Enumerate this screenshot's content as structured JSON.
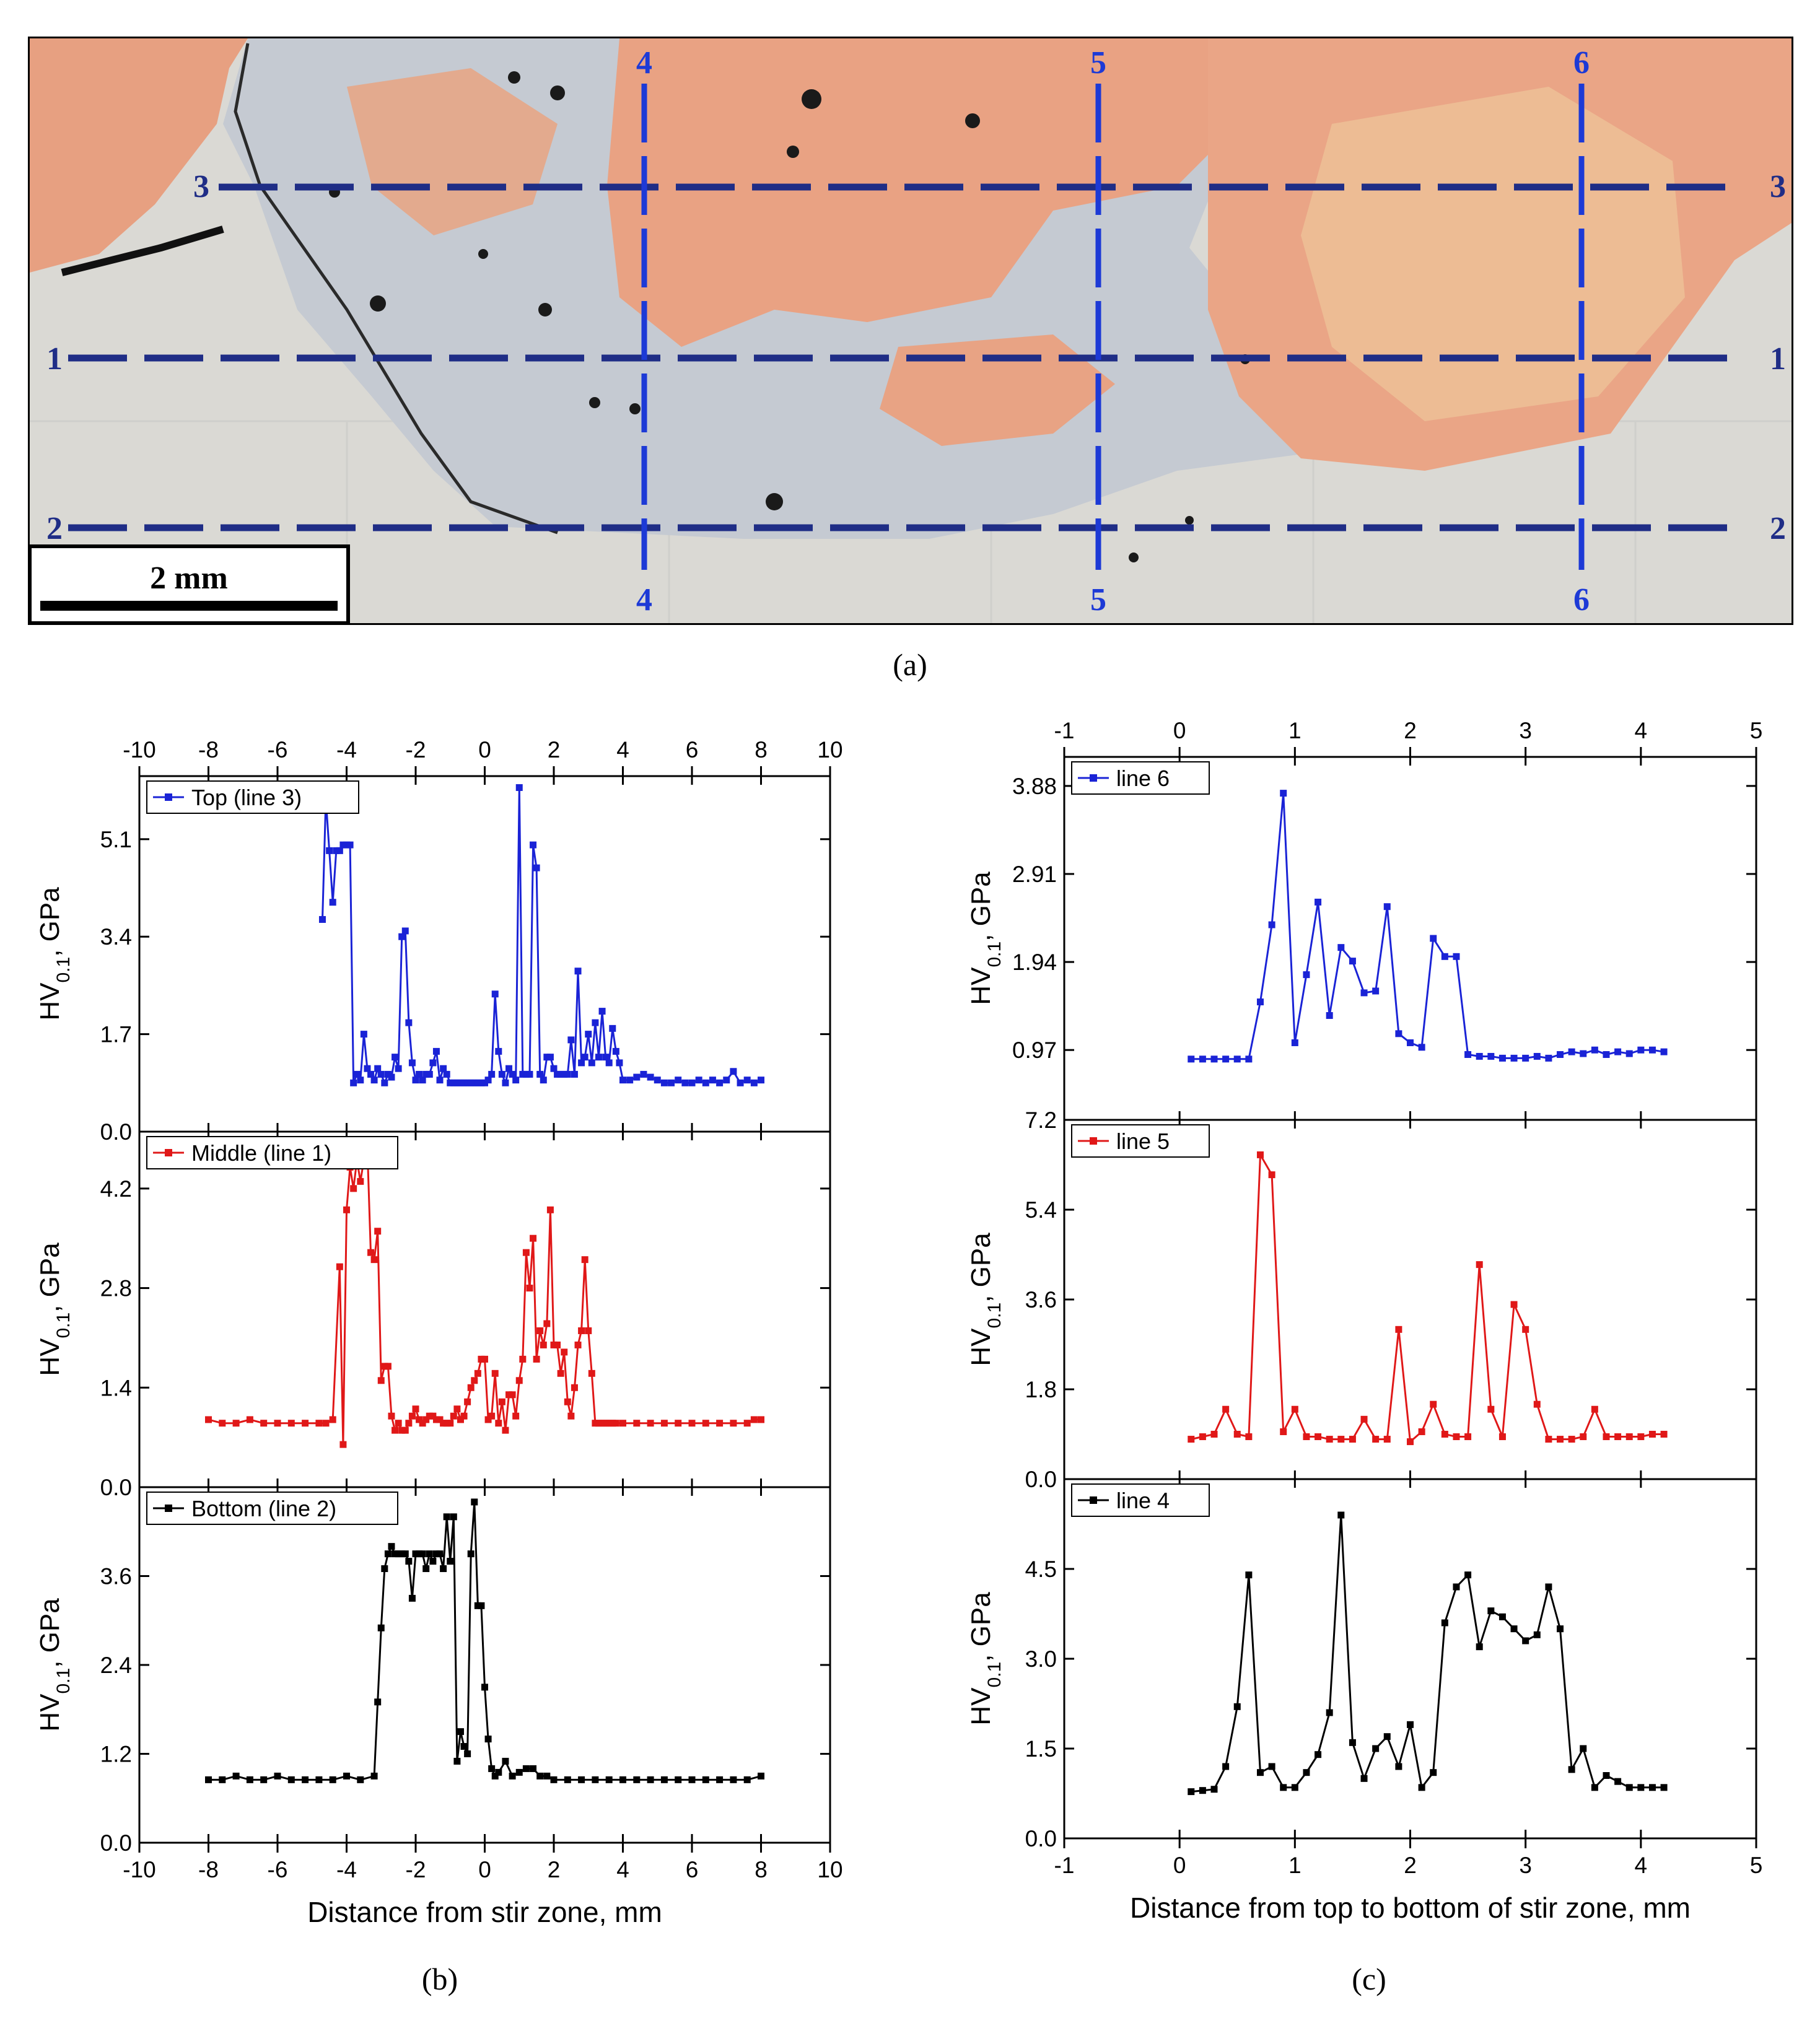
{
  "panel_a": {
    "caption": "(a)",
    "scale_bar_label": "2 mm",
    "line_labels": {
      "h1": "1",
      "h2": "2",
      "h3": "3",
      "v4": "4",
      "v5": "5",
      "v6": "6"
    },
    "colors": {
      "copper": "#e8a384",
      "steel": "#c8ccd2",
      "base": "#dcdcd8",
      "line": "#1f2d86",
      "vline": "#1d3ad6"
    }
  },
  "panel_b": {
    "caption": "(b)"
  },
  "panel_c": {
    "caption": "(c)"
  },
  "chart_data": [
    {
      "type": "line",
      "panel": "b",
      "title": "",
      "legend": "Top (line 3)",
      "color": "#1a23d6",
      "xlabel": "Distance from stir zone, mm",
      "ylabel": "HV0.1, GPa",
      "xlim": [
        -10,
        10
      ],
      "xticks": [
        -10,
        -8,
        -6,
        -4,
        -2,
        0,
        2,
        4,
        6,
        8,
        10
      ],
      "ylim": [
        0,
        6.2
      ],
      "yticks": [
        0.0,
        1.7,
        3.4,
        5.1
      ],
      "x": [
        -4.7,
        -4.6,
        -4.5,
        -4.4,
        -4.3,
        -4.2,
        -4.1,
        -4.0,
        -3.9,
        -3.8,
        -3.7,
        -3.6,
        -3.5,
        -3.4,
        -3.3,
        -3.2,
        -3.1,
        -3.0,
        -2.9,
        -2.8,
        -2.7,
        -2.6,
        -2.5,
        -2.4,
        -2.3,
        -2.2,
        -2.1,
        -2.0,
        -1.9,
        -1.8,
        -1.7,
        -1.6,
        -1.5,
        -1.4,
        -1.3,
        -1.2,
        -1.1,
        -1.0,
        -0.9,
        -0.8,
        -0.7,
        -0.6,
        -0.5,
        -0.4,
        -0.3,
        -0.2,
        -0.1,
        0.0,
        0.1,
        0.2,
        0.3,
        0.4,
        0.5,
        0.6,
        0.7,
        0.8,
        0.9,
        1.0,
        1.1,
        1.2,
        1.3,
        1.4,
        1.5,
        1.6,
        1.7,
        1.8,
        1.9,
        2.0,
        2.1,
        2.2,
        2.3,
        2.4,
        2.5,
        2.6,
        2.7,
        2.8,
        2.9,
        3.0,
        3.1,
        3.2,
        3.3,
        3.4,
        3.5,
        3.6,
        3.7,
        3.8,
        3.9,
        4.0,
        4.2,
        4.4,
        4.6,
        4.8,
        5.0,
        5.2,
        5.4,
        5.6,
        5.8,
        6.0,
        6.2,
        6.4,
        6.6,
        6.8,
        7.0,
        7.2,
        7.4,
        7.6,
        7.8,
        8.0
      ],
      "values": [
        3.7,
        5.8,
        4.9,
        4.0,
        4.9,
        4.9,
        5.0,
        5.0,
        5.0,
        0.85,
        1.0,
        0.9,
        1.7,
        1.1,
        1.0,
        0.9,
        1.1,
        1.0,
        0.85,
        1.0,
        0.95,
        1.3,
        1.1,
        3.4,
        3.5,
        1.9,
        1.2,
        0.9,
        1.0,
        0.9,
        1.0,
        1.0,
        1.2,
        1.4,
        0.9,
        1.1,
        1.0,
        0.85,
        0.85,
        0.85,
        0.85,
        0.85,
        0.85,
        0.85,
        0.85,
        0.85,
        0.85,
        0.85,
        0.9,
        1.0,
        2.4,
        1.4,
        1.0,
        0.85,
        1.1,
        1.0,
        0.9,
        6.0,
        1.0,
        1.0,
        1.0,
        5.0,
        4.6,
        1.0,
        0.9,
        1.3,
        1.3,
        1.1,
        1.0,
        1.0,
        1.0,
        1.0,
        1.6,
        1.0,
        2.8,
        1.2,
        1.3,
        1.7,
        1.2,
        1.9,
        1.3,
        2.1,
        1.3,
        1.2,
        1.8,
        1.4,
        1.2,
        0.9,
        0.9,
        0.95,
        1.0,
        0.95,
        0.9,
        0.85,
        0.85,
        0.9,
        0.85,
        0.85,
        0.9,
        0.85,
        0.9,
        0.85,
        0.9,
        1.05,
        0.85,
        0.9,
        0.85,
        0.9
      ]
    },
    {
      "type": "line",
      "panel": "b",
      "legend": "Middle (line 1)",
      "color": "#e01818",
      "xlabel": "Distance from stir zone, mm",
      "ylabel": "HV0.1, GPa",
      "xlim": [
        -10,
        10
      ],
      "ylim": [
        0,
        5.0
      ],
      "yticks": [
        0.0,
        1.4,
        2.8,
        4.2
      ],
      "x": [
        -8.0,
        -7.6,
        -7.2,
        -6.8,
        -6.4,
        -6.0,
        -5.6,
        -5.2,
        -4.8,
        -4.6,
        -4.4,
        -4.2,
        -4.1,
        -4.0,
        -3.9,
        -3.8,
        -3.7,
        -3.6,
        -3.5,
        -3.4,
        -3.3,
        -3.2,
        -3.1,
        -3.0,
        -2.9,
        -2.8,
        -2.7,
        -2.6,
        -2.5,
        -2.4,
        -2.3,
        -2.2,
        -2.1,
        -2.0,
        -1.9,
        -1.8,
        -1.7,
        -1.6,
        -1.5,
        -1.4,
        -1.3,
        -1.2,
        -1.1,
        -1.0,
        -0.9,
        -0.8,
        -0.7,
        -0.6,
        -0.5,
        -0.4,
        -0.3,
        -0.2,
        -0.1,
        0.0,
        0.1,
        0.2,
        0.3,
        0.4,
        0.5,
        0.6,
        0.7,
        0.8,
        0.9,
        1.0,
        1.1,
        1.2,
        1.3,
        1.4,
        1.5,
        1.6,
        1.7,
        1.8,
        1.9,
        2.0,
        2.1,
        2.2,
        2.3,
        2.4,
        2.5,
        2.6,
        2.7,
        2.8,
        2.9,
        3.0,
        3.1,
        3.2,
        3.3,
        3.4,
        3.5,
        3.6,
        3.7,
        3.8,
        4.0,
        4.4,
        4.8,
        5.2,
        5.6,
        6.0,
        6.4,
        6.8,
        7.2,
        7.6,
        7.8,
        8.0
      ],
      "values": [
        0.95,
        0.9,
        0.9,
        0.95,
        0.9,
        0.9,
        0.9,
        0.9,
        0.9,
        0.9,
        0.95,
        3.1,
        0.6,
        3.9,
        4.5,
        4.2,
        4.6,
        4.3,
        4.6,
        4.8,
        3.3,
        3.2,
        3.6,
        1.5,
        1.7,
        1.7,
        1.0,
        0.8,
        0.9,
        0.8,
        0.8,
        0.9,
        1.0,
        1.1,
        0.95,
        0.9,
        0.95,
        1.0,
        1.0,
        0.95,
        0.95,
        0.9,
        0.9,
        0.9,
        1.0,
        1.1,
        0.95,
        1.0,
        1.2,
        1.4,
        1.5,
        1.6,
        1.8,
        1.8,
        0.95,
        1.0,
        1.6,
        0.9,
        1.2,
        0.8,
        1.3,
        1.3,
        1.0,
        1.5,
        1.8,
        3.3,
        2.8,
        3.5,
        1.8,
        2.2,
        2.0,
        2.3,
        3.9,
        2.0,
        2.0,
        1.6,
        1.9,
        1.2,
        1.0,
        1.4,
        2.0,
        2.2,
        3.2,
        2.2,
        1.6,
        0.9,
        0.9,
        0.9,
        0.9,
        0.9,
        0.9,
        0.9,
        0.9,
        0.9,
        0.9,
        0.9,
        0.9,
        0.9,
        0.9,
        0.9,
        0.9,
        0.9,
        0.95,
        0.95
      ]
    },
    {
      "type": "line",
      "panel": "b",
      "legend": "Bottom (line 2)",
      "color": "#000000",
      "xlabel": "Distance from stir zone, mm",
      "ylabel": "HV0.1, GPa",
      "xlim": [
        -10,
        10
      ],
      "ylim": [
        0,
        4.8
      ],
      "yticks": [
        0.0,
        1.2,
        2.4,
        3.6
      ],
      "x": [
        -8.0,
        -7.6,
        -7.2,
        -6.8,
        -6.4,
        -6.0,
        -5.6,
        -5.2,
        -4.8,
        -4.4,
        -4.0,
        -3.6,
        -3.2,
        -3.1,
        -3.0,
        -2.9,
        -2.8,
        -2.7,
        -2.6,
        -2.5,
        -2.4,
        -2.3,
        -2.2,
        -2.1,
        -2.0,
        -1.9,
        -1.8,
        -1.7,
        -1.6,
        -1.5,
        -1.4,
        -1.3,
        -1.2,
        -1.1,
        -1.0,
        -0.9,
        -0.8,
        -0.7,
        -0.6,
        -0.5,
        -0.4,
        -0.3,
        -0.2,
        -0.1,
        0.0,
        0.1,
        0.2,
        0.3,
        0.4,
        0.6,
        0.8,
        1.0,
        1.2,
        1.4,
        1.6,
        1.8,
        2.0,
        2.4,
        2.8,
        3.2,
        3.6,
        4.0,
        4.4,
        4.8,
        5.2,
        5.6,
        6.0,
        6.4,
        6.8,
        7.2,
        7.6,
        8.0
      ],
      "values": [
        0.85,
        0.85,
        0.9,
        0.85,
        0.85,
        0.9,
        0.85,
        0.85,
        0.85,
        0.85,
        0.9,
        0.85,
        0.9,
        1.9,
        2.9,
        3.7,
        3.9,
        4.0,
        3.9,
        3.9,
        3.9,
        3.9,
        3.8,
        3.3,
        3.9,
        3.9,
        3.9,
        3.7,
        3.9,
        3.8,
        3.9,
        3.9,
        3.7,
        4.4,
        3.8,
        4.4,
        1.1,
        1.5,
        1.3,
        1.2,
        3.9,
        4.6,
        3.2,
        3.2,
        2.1,
        1.4,
        1.0,
        0.9,
        0.95,
        1.1,
        0.9,
        0.95,
        1.0,
        1.0,
        0.9,
        0.9,
        0.85,
        0.85,
        0.85,
        0.85,
        0.85,
        0.85,
        0.85,
        0.85,
        0.85,
        0.85,
        0.85,
        0.85,
        0.85,
        0.85,
        0.85,
        0.9
      ]
    },
    {
      "type": "line",
      "panel": "c",
      "legend": "line 6",
      "color": "#1a23d6",
      "xlabel": "Distance from top to bottom of stir zone, mm",
      "ylabel": "HV0.1, GPa",
      "xlim": [
        -1,
        5
      ],
      "xticks": [
        -1,
        0,
        1,
        2,
        3,
        4,
        5
      ],
      "ylim": [
        0.2,
        4.2
      ],
      "yticks": [
        0.97,
        1.94,
        2.91,
        3.88
      ],
      "x": [
        0.1,
        0.2,
        0.3,
        0.4,
        0.5,
        0.6,
        0.7,
        0.8,
        0.9,
        1.0,
        1.1,
        1.2,
        1.3,
        1.4,
        1.5,
        1.6,
        1.7,
        1.8,
        1.9,
        2.0,
        2.1,
        2.2,
        2.3,
        2.4,
        2.5,
        2.6,
        2.7,
        2.8,
        2.9,
        3.0,
        3.1,
        3.2,
        3.3,
        3.4,
        3.5,
        3.6,
        3.7,
        3.8,
        3.9,
        4.0,
        4.1,
        4.2
      ],
      "values": [
        0.87,
        0.87,
        0.87,
        0.87,
        0.87,
        0.87,
        1.5,
        2.35,
        3.8,
        1.05,
        1.8,
        2.6,
        1.35,
        2.1,
        1.95,
        1.6,
        1.62,
        2.55,
        1.15,
        1.05,
        1.0,
        2.2,
        2.0,
        2.0,
        0.92,
        0.9,
        0.9,
        0.88,
        0.88,
        0.88,
        0.9,
        0.88,
        0.92,
        0.95,
        0.93,
        0.97,
        0.92,
        0.95,
        0.93,
        0.97,
        0.97,
        0.95
      ]
    },
    {
      "type": "line",
      "panel": "c",
      "legend": "line 5",
      "color": "#e01818",
      "xlabel": "Distance from top to bottom of stir zone, mm",
      "ylabel": "HV0.1, GPa",
      "xlim": [
        -1,
        5
      ],
      "ylim": [
        0,
        7.2
      ],
      "yticks": [
        0.0,
        1.8,
        3.6,
        5.4,
        7.2
      ],
      "x": [
        0.1,
        0.2,
        0.3,
        0.4,
        0.5,
        0.6,
        0.7,
        0.8,
        0.9,
        1.0,
        1.1,
        1.2,
        1.3,
        1.4,
        1.5,
        1.6,
        1.7,
        1.8,
        1.9,
        2.0,
        2.1,
        2.2,
        2.3,
        2.4,
        2.5,
        2.6,
        2.7,
        2.8,
        2.9,
        3.0,
        3.1,
        3.2,
        3.3,
        3.4,
        3.5,
        3.6,
        3.7,
        3.8,
        3.9,
        4.0,
        4.1,
        4.2
      ],
      "values": [
        0.8,
        0.85,
        0.9,
        1.4,
        0.9,
        0.85,
        6.5,
        6.1,
        0.95,
        1.4,
        0.85,
        0.85,
        0.8,
        0.8,
        0.8,
        1.2,
        0.8,
        0.8,
        3.0,
        0.75,
        0.95,
        1.5,
        0.9,
        0.85,
        0.85,
        4.3,
        1.4,
        0.85,
        3.5,
        3.0,
        1.5,
        0.8,
        0.8,
        0.8,
        0.85,
        1.4,
        0.85,
        0.85,
        0.85,
        0.85,
        0.9,
        0.9
      ]
    },
    {
      "type": "line",
      "panel": "c",
      "legend": "line 4",
      "color": "#000000",
      "xlabel": "Distance from top to bottom of stir zone, mm",
      "ylabel": "HV0.1, GPa",
      "xlim": [
        -1,
        5
      ],
      "ylim": [
        0,
        6.0
      ],
      "yticks": [
        0.0,
        1.5,
        3.0,
        4.5
      ],
      "x": [
        0.1,
        0.2,
        0.3,
        0.4,
        0.5,
        0.6,
        0.7,
        0.8,
        0.9,
        1.0,
        1.1,
        1.2,
        1.3,
        1.4,
        1.5,
        1.6,
        1.7,
        1.8,
        1.9,
        2.0,
        2.1,
        2.2,
        2.3,
        2.4,
        2.5,
        2.6,
        2.7,
        2.8,
        2.9,
        3.0,
        3.1,
        3.2,
        3.3,
        3.4,
        3.5,
        3.6,
        3.7,
        3.8,
        3.9,
        4.0,
        4.1,
        4.2
      ],
      "values": [
        0.78,
        0.8,
        0.82,
        1.2,
        2.2,
        4.4,
        1.1,
        1.2,
        0.85,
        0.85,
        1.1,
        1.4,
        2.1,
        5.4,
        1.6,
        1.0,
        1.5,
        1.7,
        1.2,
        1.9,
        0.85,
        1.1,
        3.6,
        4.2,
        4.4,
        3.2,
        3.8,
        3.7,
        3.5,
        3.3,
        3.4,
        4.2,
        3.5,
        1.15,
        1.5,
        0.85,
        1.05,
        0.95,
        0.85,
        0.85,
        0.85,
        0.85
      ]
    }
  ]
}
